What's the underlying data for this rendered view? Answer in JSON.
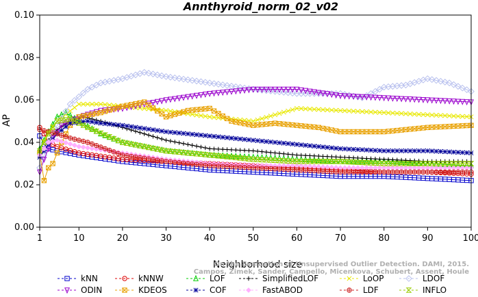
{
  "chart_data": {
    "type": "line",
    "title": "Annthyroid_norm_02_v02",
    "xlabel": "Neighborhood size",
    "ylabel": "AP",
    "xlim": [
      1,
      100
    ],
    "ylim": [
      0.0,
      0.1
    ],
    "xticks": [
      1,
      10,
      20,
      30,
      40,
      50,
      60,
      70,
      80,
      90,
      100
    ],
    "yticks": [
      0.0,
      0.02,
      0.04,
      0.06,
      0.08,
      0.1
    ],
    "ytick_labels": [
      "0.00",
      "0.02",
      "0.04",
      "0.06",
      "0.08",
      "0.10"
    ],
    "grid": false,
    "legend_position": "bottom",
    "credit": [
      "Campos, Zimek, Sander, Campello, Micenkova, Schubert, Assent, Houle",
      "On the Evaluation of Unsupervised Outlier Detection. DAMI, 2015."
    ],
    "series": [
      {
        "name": "kNN",
        "color": "#0000cc",
        "marker": "square",
        "points": [
          [
            1,
            0.043
          ],
          [
            2,
            0.039
          ],
          [
            3,
            0.037
          ],
          [
            5,
            0.036
          ],
          [
            10,
            0.034
          ],
          [
            20,
            0.031
          ],
          [
            30,
            0.029
          ],
          [
            40,
            0.027
          ],
          [
            50,
            0.026
          ],
          [
            60,
            0.025
          ],
          [
            70,
            0.024
          ],
          [
            80,
            0.024
          ],
          [
            90,
            0.023
          ],
          [
            100,
            0.022
          ]
        ]
      },
      {
        "name": "kNNW",
        "color": "#dd0000",
        "marker": "circle",
        "points": [
          [
            1,
            0.047
          ],
          [
            2,
            0.044
          ],
          [
            3,
            0.04
          ],
          [
            5,
            0.038
          ],
          [
            10,
            0.035
          ],
          [
            20,
            0.032
          ],
          [
            30,
            0.031
          ],
          [
            40,
            0.03
          ],
          [
            50,
            0.029
          ],
          [
            60,
            0.028
          ],
          [
            70,
            0.027
          ],
          [
            80,
            0.026
          ],
          [
            90,
            0.026
          ],
          [
            100,
            0.025
          ]
        ]
      },
      {
        "name": "LOF",
        "color": "#00cc00",
        "marker": "triangle-up",
        "points": [
          [
            1,
            0.037
          ],
          [
            3,
            0.045
          ],
          [
            5,
            0.052
          ],
          [
            7,
            0.054
          ],
          [
            10,
            0.05
          ],
          [
            15,
            0.044
          ],
          [
            20,
            0.04
          ],
          [
            30,
            0.036
          ],
          [
            40,
            0.034
          ],
          [
            50,
            0.033
          ],
          [
            60,
            0.032
          ],
          [
            70,
            0.031
          ],
          [
            80,
            0.031
          ],
          [
            90,
            0.03
          ],
          [
            100,
            0.029
          ]
        ]
      },
      {
        "name": "SimplifiedLOF",
        "color": "#000000",
        "marker": "plus",
        "points": [
          [
            1,
            0.033
          ],
          [
            3,
            0.041
          ],
          [
            5,
            0.046
          ],
          [
            8,
            0.05
          ],
          [
            11,
            0.052
          ],
          [
            15,
            0.05
          ],
          [
            20,
            0.047
          ],
          [
            30,
            0.041
          ],
          [
            40,
            0.037
          ],
          [
            50,
            0.036
          ],
          [
            60,
            0.034
          ],
          [
            70,
            0.033
          ],
          [
            80,
            0.032
          ],
          [
            90,
            0.031
          ],
          [
            100,
            0.031
          ]
        ]
      },
      {
        "name": "LoOP",
        "color": "#e8e800",
        "marker": "x",
        "points": [
          [
            1,
            0.036
          ],
          [
            3,
            0.045
          ],
          [
            5,
            0.05
          ],
          [
            10,
            0.058
          ],
          [
            15,
            0.058
          ],
          [
            20,
            0.057
          ],
          [
            30,
            0.055
          ],
          [
            40,
            0.052
          ],
          [
            50,
            0.05
          ],
          [
            60,
            0.056
          ],
          [
            70,
            0.055
          ],
          [
            80,
            0.054
          ],
          [
            90,
            0.053
          ],
          [
            100,
            0.052
          ]
        ]
      },
      {
        "name": "LDOF",
        "color": "#b8c0ee",
        "marker": "diamond",
        "points": [
          [
            1,
            0.028
          ],
          [
            3,
            0.04
          ],
          [
            5,
            0.048
          ],
          [
            8,
            0.058
          ],
          [
            12,
            0.065
          ],
          [
            15,
            0.068
          ],
          [
            20,
            0.07
          ],
          [
            25,
            0.073
          ],
          [
            30,
            0.071
          ],
          [
            40,
            0.068
          ],
          [
            50,
            0.065
          ],
          [
            60,
            0.063
          ],
          [
            70,
            0.063
          ],
          [
            75,
            0.061
          ],
          [
            80,
            0.066
          ],
          [
            85,
            0.067
          ],
          [
            90,
            0.07
          ],
          [
            95,
            0.068
          ],
          [
            100,
            0.064
          ]
        ]
      },
      {
        "name": "ODIN",
        "color": "#9900cc",
        "marker": "triangle-down",
        "points": [
          [
            1,
            0.026
          ],
          [
            2,
            0.032
          ],
          [
            4,
            0.042
          ],
          [
            6,
            0.048
          ],
          [
            10,
            0.052
          ],
          [
            15,
            0.055
          ],
          [
            20,
            0.056
          ],
          [
            30,
            0.06
          ],
          [
            40,
            0.063
          ],
          [
            50,
            0.065
          ],
          [
            60,
            0.065
          ],
          [
            70,
            0.062
          ],
          [
            80,
            0.061
          ],
          [
            90,
            0.06
          ],
          [
            100,
            0.059
          ]
        ]
      },
      {
        "name": "KDEOS",
        "color": "#e8a000",
        "marker": "square-x",
        "points": [
          [
            1,
            0.035
          ],
          [
            2,
            0.022
          ],
          [
            3,
            0.028
          ],
          [
            4,
            0.03
          ],
          [
            6,
            0.04
          ],
          [
            8,
            0.048
          ],
          [
            10,
            0.052
          ],
          [
            15,
            0.054
          ],
          [
            20,
            0.057
          ],
          [
            25,
            0.059
          ],
          [
            30,
            0.052
          ],
          [
            35,
            0.055
          ],
          [
            40,
            0.056
          ],
          [
            45,
            0.05
          ],
          [
            50,
            0.048
          ],
          [
            55,
            0.049
          ],
          [
            60,
            0.048
          ],
          [
            65,
            0.047
          ],
          [
            70,
            0.045
          ],
          [
            80,
            0.045
          ],
          [
            90,
            0.047
          ],
          [
            100,
            0.048
          ]
        ]
      },
      {
        "name": "COF",
        "color": "#000099",
        "marker": "asterisk",
        "points": [
          [
            1,
            0.033
          ],
          [
            3,
            0.039
          ],
          [
            5,
            0.044
          ],
          [
            8,
            0.049
          ],
          [
            12,
            0.05
          ],
          [
            15,
            0.049
          ],
          [
            20,
            0.048
          ],
          [
            30,
            0.045
          ],
          [
            40,
            0.043
          ],
          [
            50,
            0.041
          ],
          [
            60,
            0.039
          ],
          [
            70,
            0.037
          ],
          [
            80,
            0.036
          ],
          [
            90,
            0.036
          ],
          [
            100,
            0.035
          ]
        ]
      },
      {
        "name": "FastABOD",
        "color": "#ffb0ff",
        "marker": "diamond-filled",
        "points": [
          [
            1,
            0.034
          ],
          [
            3,
            0.04
          ],
          [
            5,
            0.041
          ],
          [
            10,
            0.038
          ],
          [
            20,
            0.035
          ],
          [
            30,
            0.032
          ],
          [
            40,
            0.03
          ],
          [
            50,
            0.029
          ],
          [
            60,
            0.029
          ],
          [
            70,
            0.028
          ],
          [
            80,
            0.028
          ],
          [
            90,
            0.028
          ],
          [
            100,
            0.028
          ]
        ]
      },
      {
        "name": "LDF",
        "color": "#cc2222",
        "marker": "circle-plus",
        "points": [
          [
            1,
            0.046
          ],
          [
            3,
            0.045
          ],
          [
            5,
            0.044
          ],
          [
            8,
            0.042
          ],
          [
            12,
            0.04
          ],
          [
            20,
            0.034
          ],
          [
            30,
            0.031
          ],
          [
            40,
            0.029
          ],
          [
            50,
            0.028
          ],
          [
            60,
            0.027
          ],
          [
            70,
            0.026
          ],
          [
            80,
            0.026
          ],
          [
            90,
            0.026
          ],
          [
            100,
            0.026
          ]
        ]
      },
      {
        "name": "INFLO",
        "color": "#99cc00",
        "marker": "hourglass",
        "points": [
          [
            1,
            0.036
          ],
          [
            3,
            0.044
          ],
          [
            5,
            0.05
          ],
          [
            8,
            0.051
          ],
          [
            12,
            0.047
          ],
          [
            20,
            0.04
          ],
          [
            30,
            0.036
          ],
          [
            40,
            0.034
          ],
          [
            50,
            0.032
          ],
          [
            60,
            0.031
          ],
          [
            70,
            0.031
          ],
          [
            80,
            0.03
          ],
          [
            90,
            0.03
          ],
          [
            100,
            0.03
          ]
        ]
      }
    ]
  }
}
